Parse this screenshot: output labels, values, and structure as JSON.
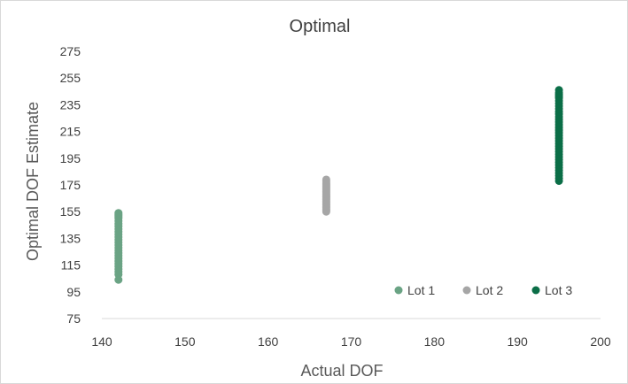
{
  "chart_data": {
    "type": "scatter",
    "title": "Optimal",
    "xlabel": "Actual DOF",
    "ylabel": "Optimal DOF Estimate",
    "xlim": [
      140,
      200
    ],
    "ylim": [
      75,
      275
    ],
    "xticks": [
      140,
      150,
      160,
      170,
      180,
      190,
      200
    ],
    "yticks": [
      75,
      95,
      115,
      135,
      155,
      175,
      195,
      215,
      235,
      255,
      275
    ],
    "grid": false,
    "legend_position": "bottom-right",
    "series": [
      {
        "name": "Lot 1",
        "color": "#6aa384",
        "x": [
          142,
          142,
          142,
          142,
          142,
          142,
          142,
          142,
          142,
          142,
          142,
          142,
          142,
          142,
          142,
          142,
          142,
          142,
          142,
          142,
          142,
          142,
          142,
          142,
          142,
          142,
          142
        ],
        "y": [
          104,
          108,
          110,
          112,
          114,
          116,
          118,
          120,
          122,
          124,
          126,
          128,
          130,
          132,
          134,
          136,
          138,
          140,
          142,
          144,
          146,
          148,
          150,
          151,
          152,
          153,
          154
        ]
      },
      {
        "name": "Lot 2",
        "color": "#a6a6a6",
        "x": [
          167,
          167,
          167,
          167,
          167,
          167,
          167,
          167,
          167,
          167,
          167,
          167,
          167,
          167,
          167,
          167,
          167,
          167,
          167,
          167,
          167,
          167,
          167,
          167,
          167
        ],
        "y": [
          155,
          156,
          157,
          158,
          159,
          160,
          161,
          162,
          163,
          164,
          165,
          166,
          167,
          168,
          169,
          170,
          171,
          172,
          173,
          174,
          175,
          176,
          177,
          178,
          179
        ]
      },
      {
        "name": "Lot 3",
        "color": "#0b6e47",
        "x": [
          195,
          195,
          195,
          195,
          195,
          195,
          195,
          195,
          195,
          195,
          195,
          195,
          195,
          195,
          195,
          195,
          195,
          195,
          195,
          195,
          195,
          195,
          195,
          195,
          195,
          195,
          195,
          195,
          195,
          195,
          195,
          195,
          195,
          195,
          195,
          195,
          195
        ],
        "y": [
          178,
          180,
          182,
          184,
          186,
          188,
          190,
          192,
          194,
          196,
          198,
          200,
          202,
          204,
          206,
          208,
          210,
          212,
          214,
          216,
          218,
          220,
          222,
          224,
          226,
          228,
          230,
          232,
          234,
          236,
          238,
          240,
          241,
          242,
          243,
          244,
          246
        ]
      }
    ]
  }
}
